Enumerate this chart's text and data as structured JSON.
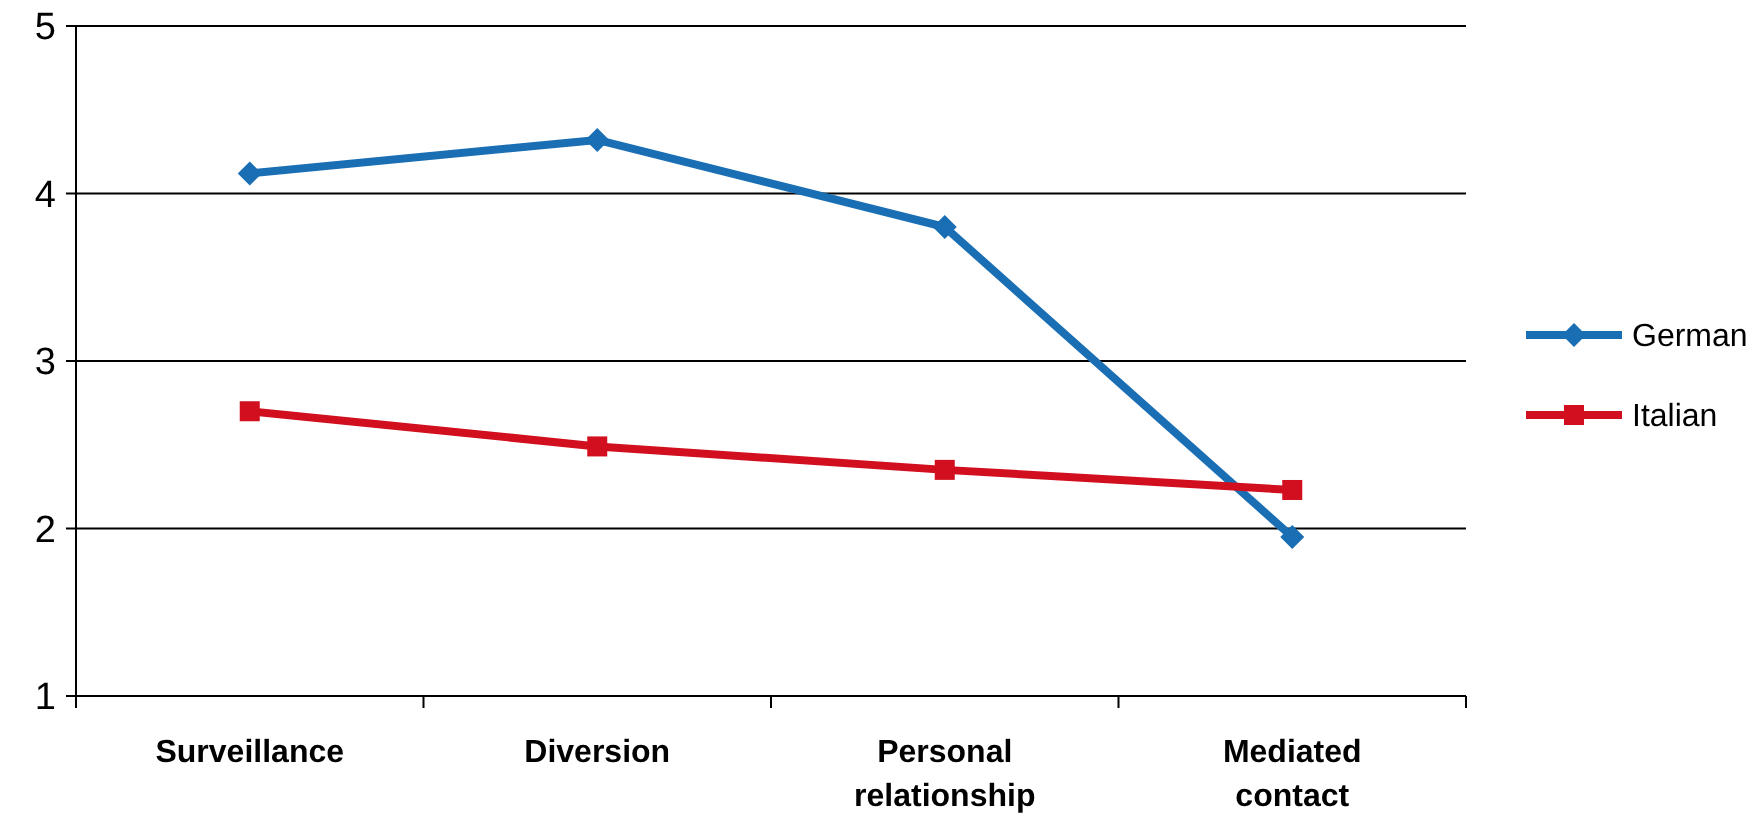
{
  "chart_data": {
    "type": "line",
    "categories": [
      "Surveillance",
      "Diversion",
      "Personal relationship",
      "Mediated contact"
    ],
    "series": [
      {
        "name": "German",
        "color": "#1a6eb4",
        "values": [
          4.12,
          4.32,
          3.8,
          1.95
        ],
        "marker": "diamond"
      },
      {
        "name": "Italian",
        "color": "#d20f1e",
        "values": [
          2.7,
          2.49,
          2.35,
          2.23
        ],
        "marker": "square"
      }
    ],
    "ylim": [
      1,
      5
    ],
    "yticks": [
      1,
      2,
      3,
      4,
      5
    ],
    "grid": "y",
    "legend": "right",
    "line_style": "solid"
  }
}
